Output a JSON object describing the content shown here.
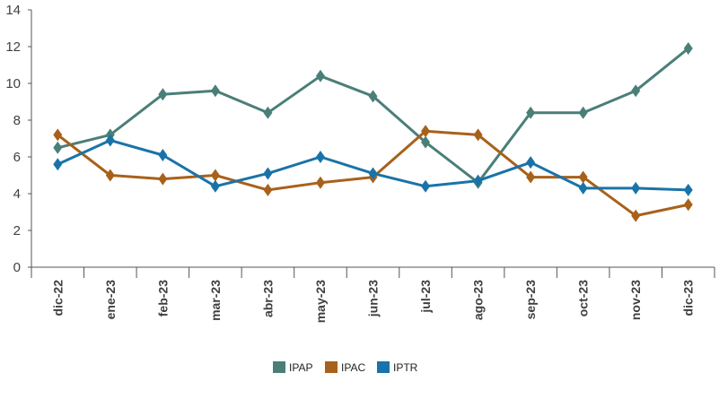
{
  "chart_data": {
    "type": "line",
    "title": "",
    "xlabel": "",
    "ylabel": "",
    "categories": [
      "dic-22",
      "ene-23",
      "feb-23",
      "mar-23",
      "abr-23",
      "may-23",
      "jun-23",
      "jul-23",
      "ago-23",
      "sep-23",
      "oct-23",
      "nov-23",
      "dic-23"
    ],
    "ylim": [
      0,
      14
    ],
    "yticks": [
      0,
      2,
      4,
      6,
      8,
      10,
      12,
      14
    ],
    "grid": false,
    "legend_position": "bottom-center",
    "series": [
      {
        "name": "IPAP",
        "color": "#4a7f78",
        "values": [
          6.5,
          7.2,
          9.4,
          9.6,
          8.4,
          10.4,
          9.3,
          6.8,
          4.6,
          8.4,
          8.4,
          9.6,
          11.9
        ]
      },
      {
        "name": "IPAC",
        "color": "#a8611a",
        "values": [
          7.2,
          5.0,
          4.8,
          5.0,
          4.2,
          4.6,
          4.9,
          7.4,
          7.2,
          4.9,
          4.9,
          2.8,
          3.4
        ]
      },
      {
        "name": "IPTR",
        "color": "#1a73a8",
        "values": [
          5.6,
          6.9,
          6.1,
          4.4,
          5.1,
          6.0,
          5.1,
          4.4,
          4.7,
          5.7,
          4.3,
          4.3,
          4.2
        ]
      }
    ]
  }
}
